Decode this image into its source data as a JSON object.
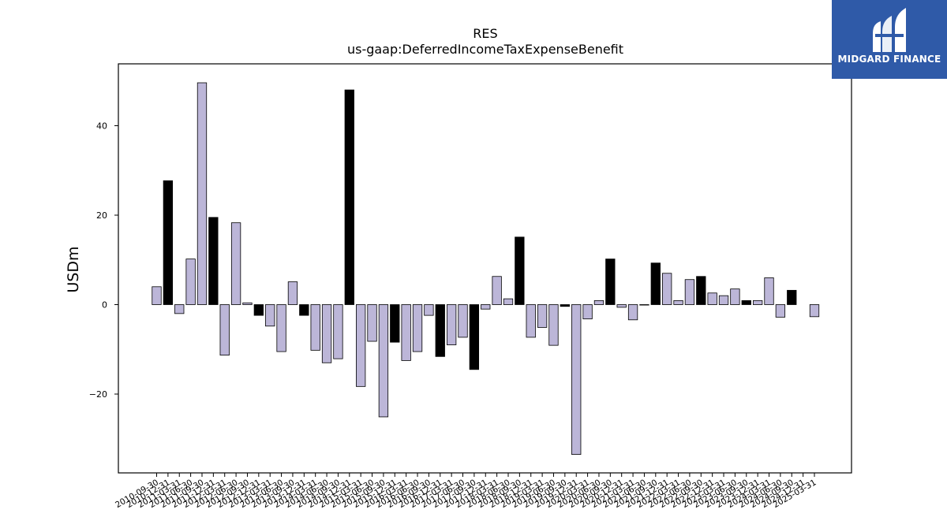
{
  "logo": {
    "text": "MIDGARD FINANCE",
    "background": "#2f5aa8"
  },
  "chart_data": {
    "type": "bar",
    "title": "RES",
    "subtitle": "us-gaap:DeferredIncomeTaxExpenseBenefit",
    "ylabel": "USDm",
    "xlabel": "",
    "ylim": [
      -38,
      54
    ],
    "yticks": [
      -20,
      0,
      20,
      40
    ],
    "grid": false,
    "colors": {
      "quarter": "#bcb6d8",
      "annual": "#000000",
      "edge": "#000000"
    },
    "categories": [
      "2010-09-30",
      "2010-12-31",
      "2011-03-31",
      "2011-06-30",
      "2011-09-30",
      "2011-12-31",
      "2012-03-31",
      "2012-06-30",
      "2012-09-30",
      "2012-12-31",
      "2013-03-31",
      "2013-06-30",
      "2013-09-30",
      "2013-12-31",
      "2014-03-31",
      "2014-06-30",
      "2014-09-30",
      "2014-12-31",
      "2015-03-31",
      "2015-06-30",
      "2015-09-30",
      "2015-12-31",
      "2016-03-31",
      "2016-06-30",
      "2016-09-30",
      "2016-12-31",
      "2017-03-31",
      "2017-06-30",
      "2017-09-30",
      "2017-12-31",
      "2018-03-31",
      "2018-06-30",
      "2018-09-30",
      "2018-12-31",
      "2019-03-31",
      "2019-06-30",
      "2019-09-30",
      "2019-12-31",
      "2020-03-31",
      "2020-06-30",
      "2020-09-30",
      "2020-12-31",
      "2021-03-31",
      "2021-06-30",
      "2021-09-30",
      "2021-12-31",
      "2022-03-31",
      "2022-06-30",
      "2022-09-30",
      "2022-12-31",
      "2023-03-31",
      "2023-06-30",
      "2023-09-30",
      "2023-12-31",
      "2024-03-31",
      "2024-06-30",
      "2024-09-30",
      "2024-12-31",
      "2025-03-31"
    ],
    "values": [
      4.0,
      27.7,
      -2.0,
      10.2,
      49.6,
      19.5,
      -11.3,
      18.3,
      0.4,
      -2.4,
      -4.8,
      -10.5,
      5.1,
      -2.4,
      -10.2,
      -13.0,
      -12.1,
      48.0,
      -18.3,
      -8.2,
      -25.1,
      -8.4,
      -12.5,
      -10.5,
      -2.4,
      -11.6,
      -9.0,
      -7.3,
      -14.5,
      -1.0,
      6.3,
      1.3,
      15.1,
      -7.3,
      -5.1,
      -9.1,
      -0.4,
      -33.5,
      -3.2,
      0.9,
      10.2,
      -0.6,
      -3.4,
      0.0,
      9.3,
      7.0,
      0.9,
      5.6,
      6.3,
      2.6,
      2.0,
      3.5,
      0.9,
      0.9,
      6.0,
      -2.8,
      3.2,
      null,
      -2.7
    ],
    "annual": [
      false,
      true,
      false,
      false,
      false,
      true,
      false,
      false,
      false,
      true,
      false,
      false,
      false,
      true,
      false,
      false,
      false,
      true,
      false,
      false,
      false,
      true,
      false,
      false,
      false,
      true,
      false,
      false,
      true,
      false,
      false,
      false,
      true,
      false,
      false,
      false,
      true,
      false,
      false,
      false,
      true,
      false,
      false,
      false,
      true,
      false,
      false,
      false,
      true,
      false,
      false,
      false,
      true,
      false,
      false,
      false,
      true,
      false,
      false
    ]
  }
}
